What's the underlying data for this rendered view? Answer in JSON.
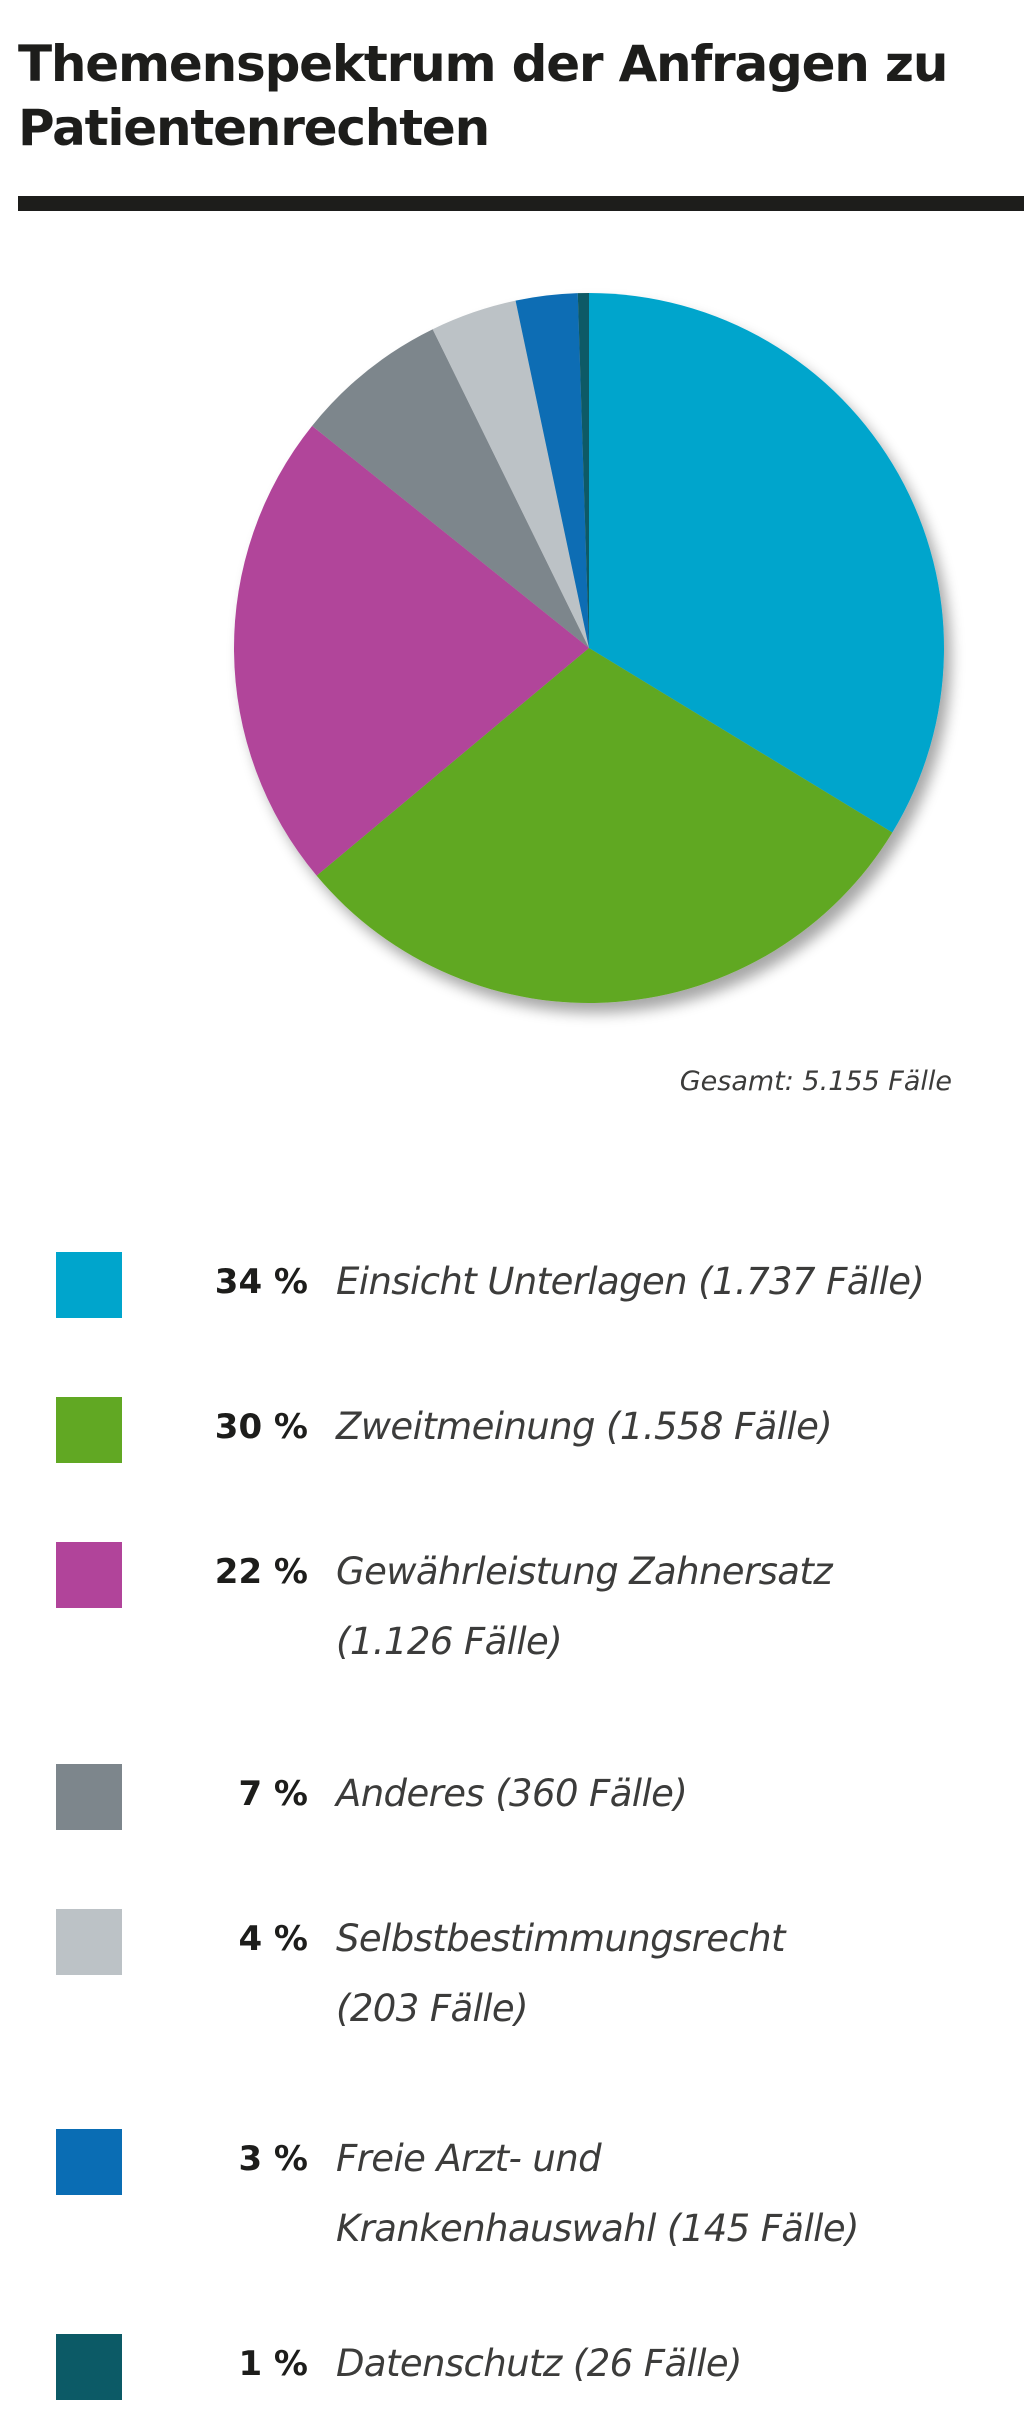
{
  "title_line1": "Themenspektrum der Anfragen zu",
  "title_line2": "Patientenrechten",
  "total_label": "Gesamt: 5.155 Fälle",
  "chart_data": {
    "type": "pie",
    "title": "Themenspektrum der Anfragen zu Patientenrechten",
    "total": 5155,
    "start": "12 o'clock",
    "direction": "clockwise",
    "slices": [
      {
        "id": "einsicht",
        "percent": "34 %",
        "cases": 1737,
        "label_lines": [
          "Einsicht Unterlagen (1.737 Fälle)"
        ],
        "color": "#00a5cc"
      },
      {
        "id": "zweitmeinung",
        "percent": "30 %",
        "cases": 1558,
        "label_lines": [
          "Zweitmeinung (1.558 Fälle)"
        ],
        "color": "#61a823"
      },
      {
        "id": "gewaehrleistung",
        "percent": "22 %",
        "cases": 1126,
        "label_lines": [
          "Gewährleistung Zahnersatz",
          "(1.126 Fälle)"
        ],
        "color": "#b1449a"
      },
      {
        "id": "anderes",
        "percent": "7 %",
        "cases": 360,
        "label_lines": [
          "Anderes (360 Fälle)"
        ],
        "color": "#7d868c"
      },
      {
        "id": "selbstbestimmung",
        "percent": "4 %",
        "cases": 203,
        "label_lines": [
          "Selbstbestimmungsrecht",
          "(203 Fälle)"
        ],
        "color": "#bcc2c6"
      },
      {
        "id": "arztwahl",
        "percent": "3 %",
        "cases": 145,
        "label_lines": [
          "Freie Arzt- und",
          "Krankenhauswahl (145 Fälle)"
        ],
        "color": "#0a6db4"
      },
      {
        "id": "datenschutz",
        "percent": "1 %",
        "cases": 26,
        "label_lines": [
          "Datenschutz (26 Fälle)"
        ],
        "color": "#0c5a66"
      }
    ]
  }
}
